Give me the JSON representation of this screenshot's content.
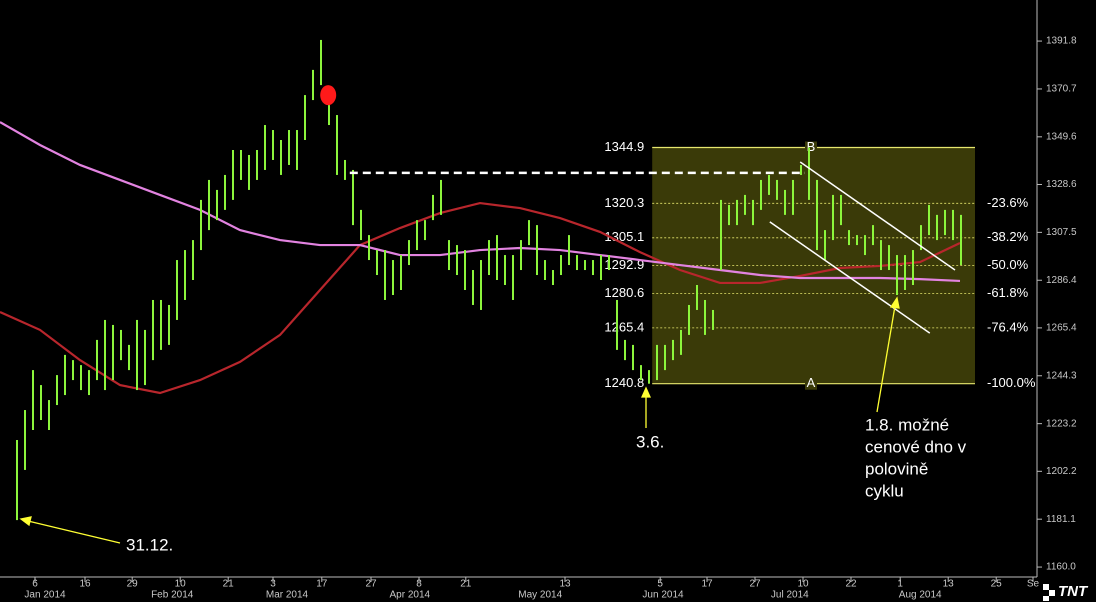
{
  "chart_data": {
    "type": "ohlc",
    "xlim": [
      -2.125,
      127.25
    ],
    "ylim": [
      1156.5,
      1409.9
    ],
    "yticks": [
      1391.8,
      1370.7,
      1349.6,
      1328.6,
      1307.5,
      1286.4,
      1265.4,
      1244.3,
      1223.2,
      1202.2,
      1181.1,
      {
        "value": 1160,
        "label": "1160.0"
      }
    ],
    "xticks": [
      {
        "value": 2.25,
        "label": "6"
      },
      {
        "value": 8.5,
        "label": "16"
      },
      {
        "value": 14.4,
        "label": "29"
      },
      {
        "value": 20.4,
        "label": "10"
      },
      {
        "value": 26.4,
        "label": "21"
      },
      {
        "value": 32,
        "label": "3"
      },
      {
        "value": 38.1,
        "label": "17"
      },
      {
        "value": 44.25,
        "label": "27"
      },
      {
        "value": 50.25,
        "label": "8"
      },
      {
        "value": 56.1,
        "label": "21"
      },
      {
        "value": 68.5,
        "label": "13"
      },
      {
        "value": 80.4,
        "label": "5"
      },
      {
        "value": 86.25,
        "label": "17"
      },
      {
        "value": 92.25,
        "label": "27"
      },
      {
        "value": 98.25,
        "label": "10"
      },
      {
        "value": 104.25,
        "label": "22"
      },
      {
        "value": 110.4,
        "label": "1"
      },
      {
        "value": 116.4,
        "label": "13"
      },
      {
        "value": 122.4,
        "label": "25"
      },
      {
        "value": 127,
        "label": "Se"
      }
    ],
    "month_labels": [
      {
        "value": 3.5,
        "label": "Jan 2014"
      },
      {
        "value": 19.4,
        "label": "Feb 2014"
      },
      {
        "value": 33.75,
        "label": "Mar 2014"
      },
      {
        "value": 49.1,
        "label": "Apr 2014"
      },
      {
        "value": 65.4,
        "label": "May 2014"
      },
      {
        "value": 80.75,
        "label": "Jun 2014"
      },
      {
        "value": 96.6,
        "label": "Jul 2014"
      },
      {
        "value": 112.9,
        "label": "Aug 2014"
      }
    ],
    "bars": {
      "color": "#8cf53c",
      "high": [
        1216.0,
        1229.2,
        1246.8,
        1240.2,
        1233.6,
        1244.6,
        1253.5,
        1251.2,
        1249.0,
        1246.8,
        1260.1,
        1268.9,
        1266.7,
        1264.5,
        1257.9,
        1268.9,
        1264.5,
        1277.7,
        1277.7,
        1275.5,
        1295.3,
        1299.7,
        1304.1,
        1321.8,
        1330.6,
        1326.2,
        1332.8,
        1343.8,
        1343.8,
        1341.6,
        1343.8,
        1354.8,
        1352.6,
        1348.2,
        1352.6,
        1352.6,
        1368.0,
        1379.1,
        1392.3,
        1363.6,
        1359.2,
        1339.4,
        1335.0,
        1317.4,
        1306.3,
        1299.7,
        1299.7,
        1295.3,
        1297.5,
        1304.1,
        1312.9,
        1312.9,
        1324.0,
        1330.6,
        1304.1,
        1301.9,
        1299.7,
        1290.9,
        1295.3,
        1304.1,
        1306.3,
        1297.5,
        1297.5,
        1304.1,
        1312.9,
        1310.7,
        1295.3,
        1290.9,
        1297.5,
        1306.3,
        1297.5,
        1295.3,
        1295.3,
        1297.5,
        1297.5,
        1277.7,
        1260.1,
        1257.9,
        1249.0,
        1246.8,
        1257.9,
        1257.9,
        1260.1,
        1264.5,
        1275.5,
        1284.3,
        1277.7,
        1273.3,
        1321.8,
        1319.6,
        1321.8,
        1324.0,
        1321.8,
        1330.6,
        1332.8,
        1330.6,
        1326.2,
        1330.6,
        1337.2,
        1344.9,
        1330.6,
        1308.5,
        1324.0,
        1324.0,
        1308.5,
        1306.3,
        1306.3,
        1310.7,
        1304.1,
        1301.9,
        1297.5,
        1297.5,
        1299.7,
        1310.7,
        1319.6,
        1315.2,
        1317.4,
        1317.4,
        1315.2
      ],
      "low": [
        1180.7,
        1202.8,
        1220.4,
        1224.8,
        1220.4,
        1231.4,
        1235.8,
        1242.4,
        1238.0,
        1235.8,
        1242.4,
        1238.0,
        1242.4,
        1251.2,
        1246.8,
        1238.0,
        1240.2,
        1251.2,
        1255.7,
        1257.9,
        1268.9,
        1277.7,
        1286.5,
        1299.7,
        1308.5,
        1312.9,
        1317.4,
        1321.8,
        1330.6,
        1326.2,
        1330.6,
        1335.0,
        1339.4,
        1332.8,
        1337.2,
        1335.0,
        1348.2,
        1365.8,
        1372.4,
        1354.8,
        1332.8,
        1330.6,
        1310.7,
        1304.1,
        1295.3,
        1288.7,
        1277.7,
        1279.9,
        1282.1,
        1293.1,
        1299.7,
        1304.1,
        1312.9,
        1315.2,
        1290.9,
        1288.7,
        1282.1,
        1275.5,
        1273.3,
        1288.7,
        1286.5,
        1284.3,
        1277.7,
        1290.9,
        1301.9,
        1288.7,
        1286.5,
        1284.3,
        1288.7,
        1293.1,
        1290.9,
        1290.9,
        1288.7,
        1286.5,
        1290.9,
        1255.7,
        1251.2,
        1246.8,
        1242.4,
        1240.8,
        1242.4,
        1246.8,
        1251.2,
        1253.5,
        1262.3,
        1273.3,
        1262.3,
        1264.5,
        1290.9,
        1310.7,
        1310.7,
        1315.2,
        1310.7,
        1317.4,
        1324.0,
        1321.8,
        1315.2,
        1315.2,
        1332.8,
        1321.8,
        1299.7,
        1295.3,
        1304.1,
        1310.7,
        1301.9,
        1301.9,
        1297.5,
        1301.9,
        1290.9,
        1290.9,
        1279.9,
        1282.1,
        1284.3,
        1299.7,
        1306.3,
        1304.1,
        1306.3,
        1304.1,
        1293.1
      ]
    },
    "moving_averages": [
      {
        "color": "#b8262c",
        "x": [
          -2.125,
          2.875,
          7.875,
          12.875,
          17.875,
          22.875,
          27.875,
          32.875,
          37.875,
          42.875,
          47.875,
          52.875,
          57.875,
          62.875,
          67.875,
          72.875,
          77.875,
          82.875,
          87.875,
          92.875,
          97.875,
          102.875,
          107.875,
          112.875,
          117.875
        ],
        "values": [
          1272.4,
          1264.5,
          1251.2,
          1240.2,
          1236.7,
          1242.4,
          1250.4,
          1262.3,
          1282.1,
          1301.9,
          1309.4,
          1316.0,
          1320.4,
          1318.2,
          1313.8,
          1307.7,
          1298.8,
          1290.9,
          1285.2,
          1285.2,
          1288.3,
          1291.8,
          1292.7,
          1294.4,
          1302.8
        ]
      },
      {
        "color": "#e283e0",
        "x": [
          -2.125,
          2.875,
          7.875,
          12.875,
          17.875,
          22.875,
          27.875,
          32.875,
          37.875,
          42.875,
          47.875,
          52.875,
          57.875,
          62.875,
          67.875,
          72.875,
          77.875,
          82.875,
          87.875,
          92.875,
          97.875,
          102.875,
          107.875,
          112.875,
          117.875
        ],
        "values": [
          1356.1,
          1346.0,
          1337.2,
          1330.6,
          1324.0,
          1317.4,
          1308.5,
          1304.1,
          1301.9,
          1301.9,
          1297.5,
          1297.5,
          1299.7,
          1300.6,
          1299.7,
          1297.5,
          1295.3,
          1293.1,
          1290.9,
          1288.7,
          1287.4,
          1287.4,
          1287.4,
          1286.9,
          1286.1
        ]
      }
    ],
    "fibonacci": {
      "x": [
        79.4,
        119.75
      ],
      "fill": "#3a3a08",
      "color": "#e6e66e",
      "levels": [
        1344.9,
        1320.3,
        1305.1,
        1292.9,
        1280.6,
        1265.4,
        1240.8
      ],
      "ratio_labels": [
        "-23.6%",
        "-38.2%",
        "-50.0%",
        "-61.8%",
        "-76.4%",
        "-100.0%"
      ],
      "points": [
        {
          "label": "B",
          "x": 99.25
        },
        {
          "label": "A",
          "x": 99.25
        }
      ]
    },
    "resistance_line": {
      "x": [
        41.6,
        98.5
      ],
      "y": 1333.7,
      "color": "#ffffff"
    },
    "channel": [
      {
        "x": [
          97.9,
          117.25
        ],
        "y": [
          1338.5,
          1290.9
        ]
      },
      {
        "x": [
          94.1,
          114.1
        ],
        "y": [
          1312.1,
          1263.1
        ]
      }
    ],
    "marker": {
      "x": 38.9,
      "y": 1368.0,
      "color": "#ff1a1a"
    },
    "annotations": [
      {
        "text": [
          "31.12."
        ]
      },
      {
        "text": [
          "3.6."
        ]
      },
      {
        "text": [
          "1.8. možné",
          "cenové dno v",
          "polovině",
          "cyklu"
        ]
      }
    ],
    "logo": "TNT"
  }
}
